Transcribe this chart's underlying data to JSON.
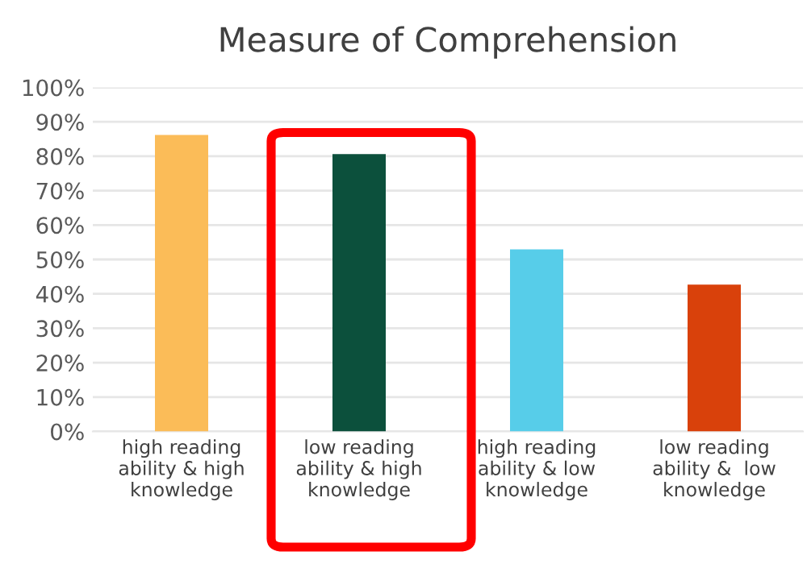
{
  "chart_data": {
    "type": "bar",
    "title": "Measure of Comprehension",
    "categories": [
      "high reading\nability & high\nknowledge",
      "low reading\nability & high\nknowledge",
      "high reading\nability & low\nknowledge",
      "low reading\nability &  low\nknowledge"
    ],
    "values": [
      86.2,
      80.6,
      52.9,
      42.7
    ],
    "colors": [
      "#fbbc58",
      "#0c503c",
      "#57cde9",
      "#d9410b"
    ],
    "ylim": [
      0,
      100
    ],
    "yticks": [
      {
        "value": 0,
        "label": "0%"
      },
      {
        "value": 10,
        "label": "10%"
      },
      {
        "value": 20,
        "label": "20%"
      },
      {
        "value": 30,
        "label": "30%"
      },
      {
        "value": 40,
        "label": "40%"
      },
      {
        "value": 50,
        "label": "50%"
      },
      {
        "value": 60,
        "label": "60%"
      },
      {
        "value": 70,
        "label": "70%"
      },
      {
        "value": 80,
        "label": "80%"
      },
      {
        "value": 90,
        "label": "90%"
      },
      {
        "value": 100,
        "label": "100%"
      }
    ],
    "grid": "y",
    "legend": false
  }
}
